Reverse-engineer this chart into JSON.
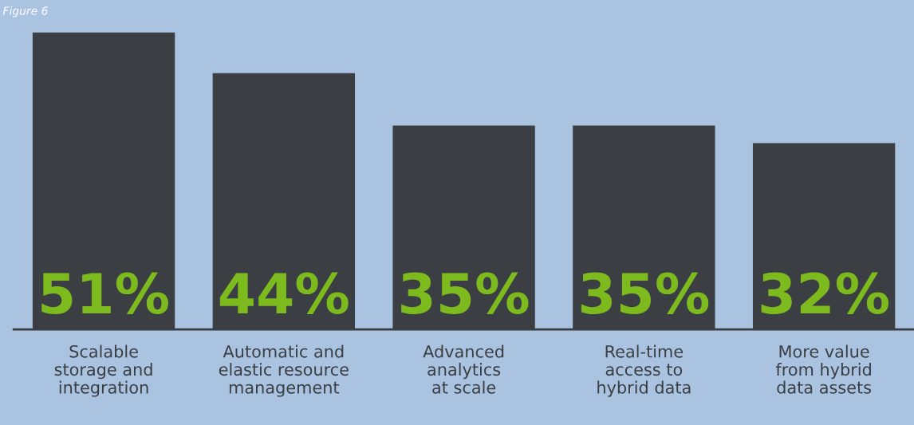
{
  "chart_data": {
    "type": "bar",
    "categories": [
      "Scalable\nstorage and\nintegration",
      "Automatic and\nelastic resource\nmanagement",
      "Advanced\nanalytics\nat scale",
      "Real-time\naccess to\nhybrid data",
      "More value\nfrom hybrid\ndata assets"
    ],
    "values": [
      51,
      44,
      35,
      35,
      32
    ],
    "value_labels": [
      "51%",
      "44%",
      "35%",
      "35%",
      "32%"
    ],
    "color": "#3b3e42",
    "annotations": [
      "Figure 6"
    ]
  }
}
